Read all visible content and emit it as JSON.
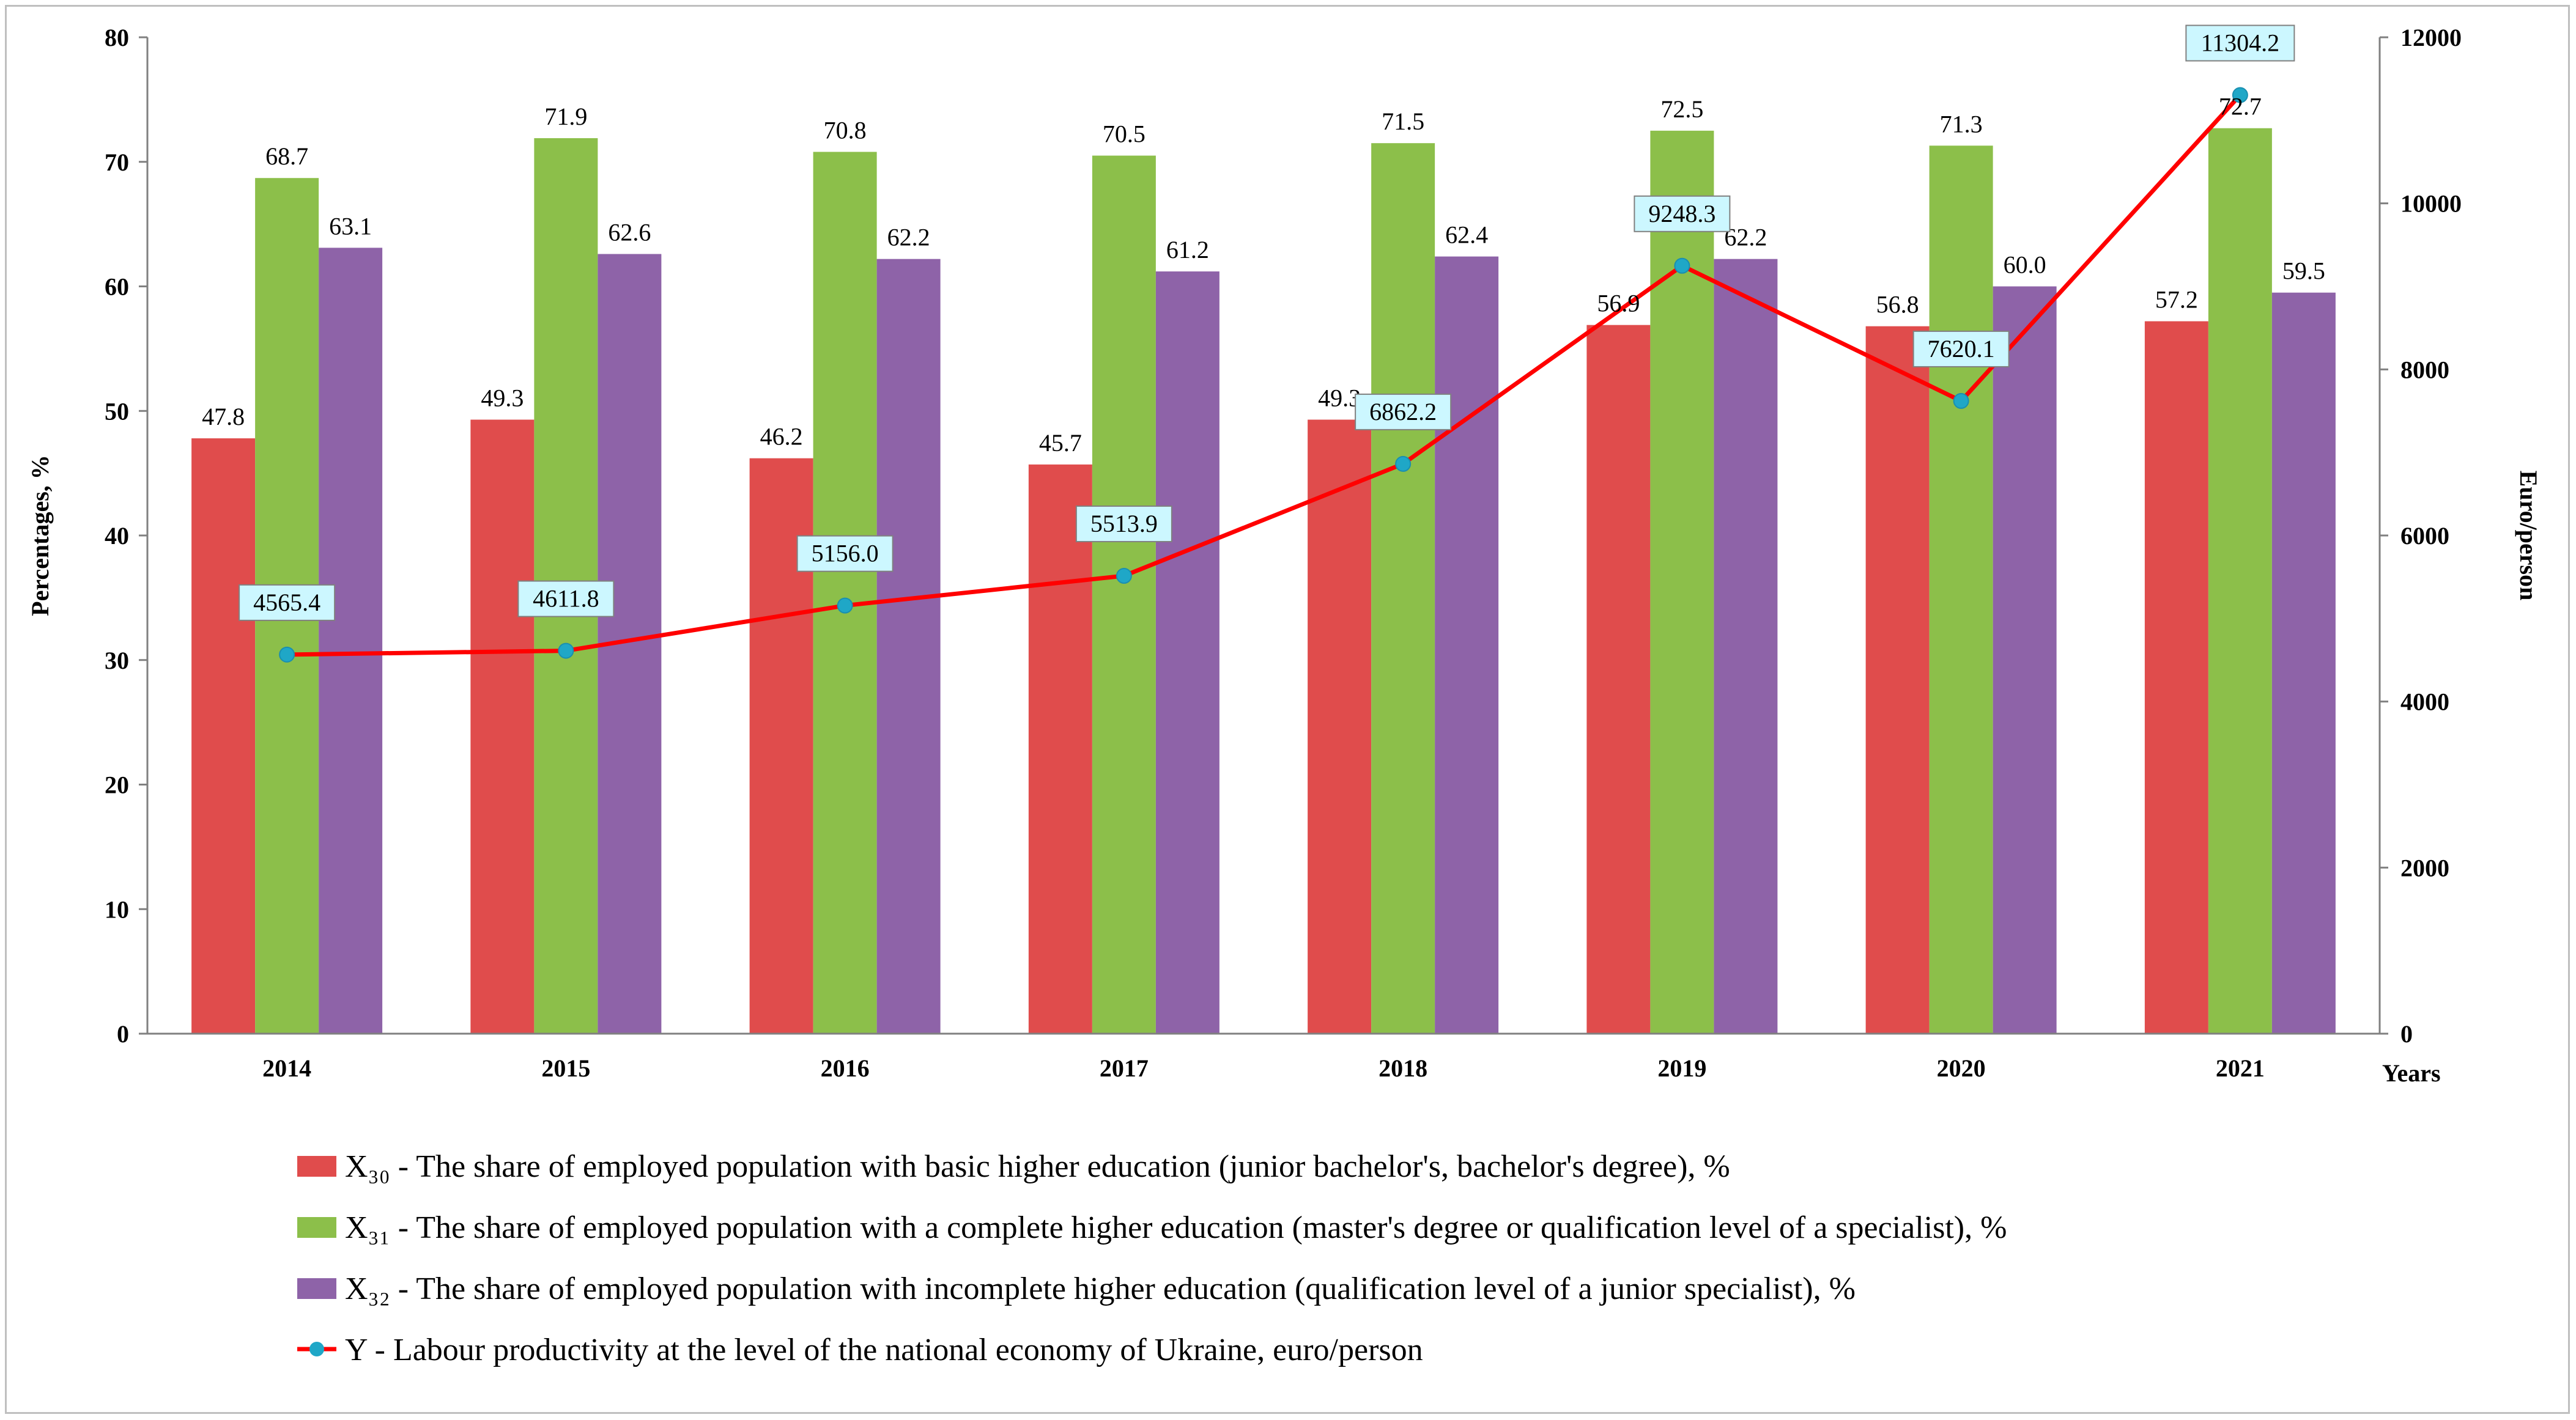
{
  "chart_data": {
    "type": "bar",
    "categories": [
      "2014",
      "2015",
      "2016",
      "2017",
      "2018",
      "2019",
      "2020",
      "2021"
    ],
    "xlabel": "Years",
    "ylabel": "Percentages, %",
    "y2label": "Euro/person",
    "ylim": [
      0,
      80
    ],
    "y2lim": [
      0,
      12000
    ],
    "yticks": [
      "0",
      "10",
      "20",
      "30",
      "40",
      "50",
      "60",
      "70",
      "80"
    ],
    "y2ticks": [
      "0",
      "2000",
      "4000",
      "6000",
      "8000",
      "10000",
      "12000"
    ],
    "series": [
      {
        "name": "X30",
        "legend": "X₃₀ - The share of employed population with basic higher education (junior bachelor's, bachelor's degree), %",
        "type": "bar",
        "axis": "left",
        "color": "#e04c4c",
        "values": [
          47.8,
          49.3,
          46.2,
          45.7,
          49.3,
          56.9,
          56.8,
          57.2
        ],
        "labels": [
          "47.8",
          "49.3",
          "46.2",
          "45.7",
          "49.3",
          "56.9",
          "56.8",
          "57.2"
        ]
      },
      {
        "name": "X31",
        "legend": "X₃₁ - The share of employed population with a complete higher education (master's degree or qualification level of a specialist), %",
        "type": "bar",
        "axis": "left",
        "color": "#8cbf4a",
        "values": [
          68.7,
          71.9,
          70.8,
          70.5,
          71.5,
          72.5,
          71.3,
          72.7
        ],
        "labels": [
          "68.7",
          "71.9",
          "70.8",
          "70.5",
          "71.5",
          "72.5",
          "71.3",
          "72.7"
        ]
      },
      {
        "name": "X32",
        "legend": "X₃₂ - The share of employed population with incomplete higher education (qualification level of a junior specialist), %",
        "type": "bar",
        "axis": "left",
        "color": "#8e63a8",
        "values": [
          63.1,
          62.6,
          62.2,
          61.2,
          62.4,
          62.2,
          60.0,
          59.5
        ],
        "labels": [
          "63.1",
          "62.6",
          "62.2",
          "61.2",
          "62.4",
          "62.2",
          "60.0",
          "59.5"
        ]
      },
      {
        "name": "Y",
        "legend": "Y - Labour productivity at the level of the national economy of Ukraine, euro/person",
        "type": "line",
        "axis": "right",
        "color": "#ff0000",
        "marker_color": "#1fa7c7",
        "label_bg": "#ccf7ff",
        "values": [
          4565.4,
          4611.8,
          5156.0,
          5513.9,
          6862.2,
          9248.3,
          7620.1,
          11304.2
        ],
        "labels": [
          "4565.4",
          "4611.8",
          "5156.0",
          "5513.9",
          "6862.2",
          "9248.3",
          "7620.1",
          "11304.2"
        ]
      }
    ]
  }
}
